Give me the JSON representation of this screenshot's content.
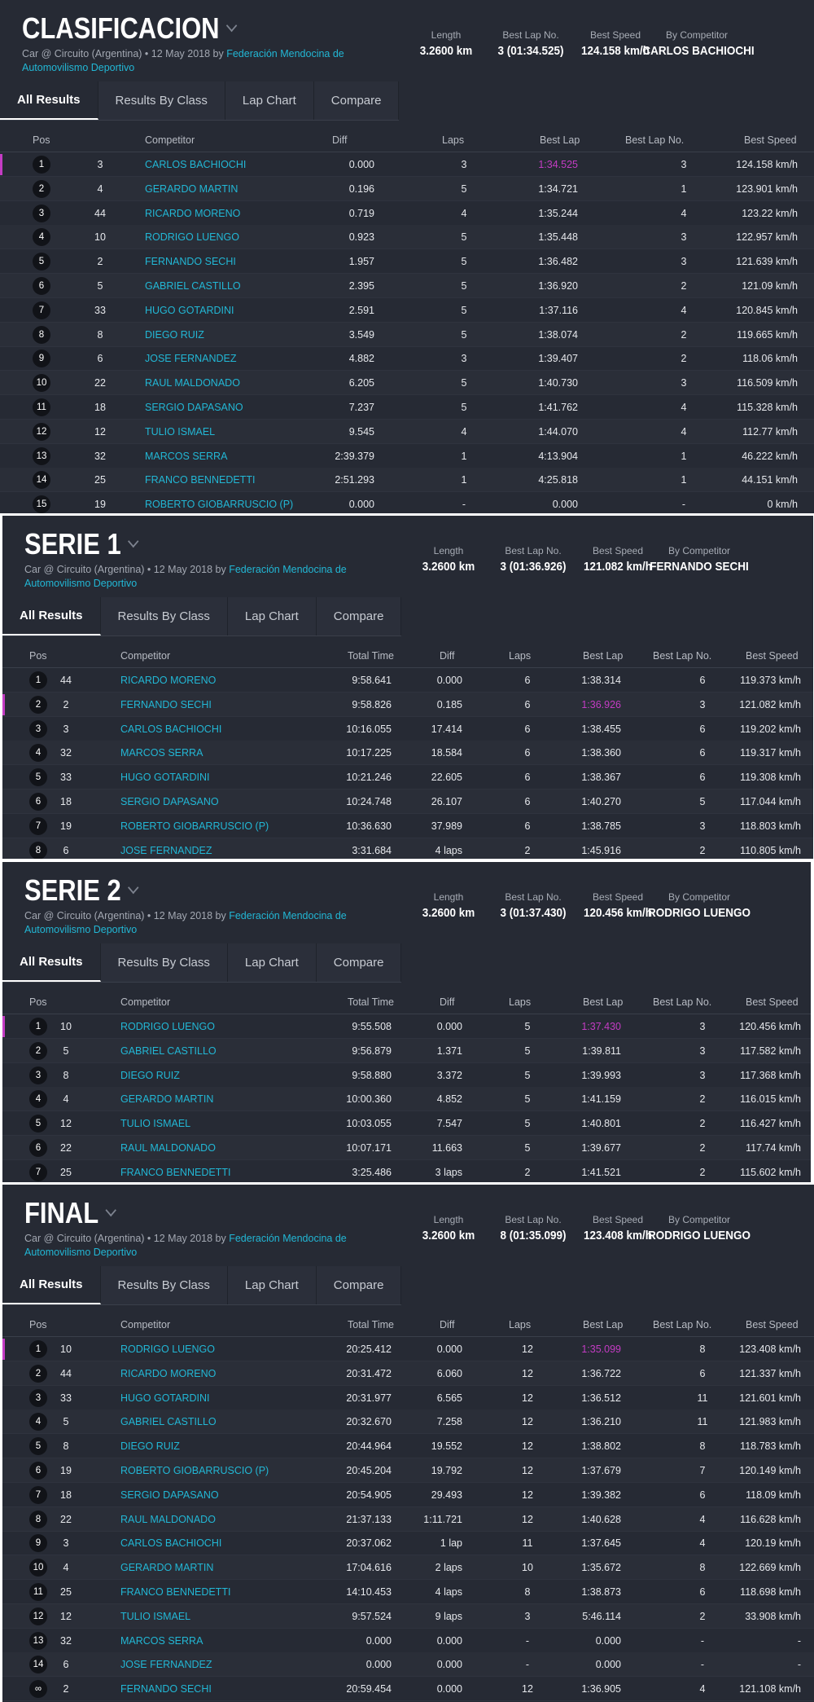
{
  "common": {
    "subtitle_prefix": "Car @ Circuito (Argentina) • 12 May 2018 by",
    "org": "Federación Mendocina de Automovilismo Deportivo",
    "tabs": [
      "All Results",
      "Results By Class",
      "Lap Chart",
      "Compare"
    ],
    "stat_labels": [
      "Length",
      "Best Lap No.",
      "Best Speed",
      "By Competitor"
    ],
    "colors": {
      "panel": "#262a34",
      "accent_link": "#22b7d5",
      "best_lap": "#c43cc4",
      "white_bg": "#ffffff"
    }
  },
  "sessions": [
    {
      "title": "CLASIFICACION",
      "stats": {
        "length": "3.2600 km",
        "best_lap_no": "3 (01:34.525)",
        "best_speed": "124.158 km/h",
        "by_competitor": "CARLOS BACHIOCHI"
      },
      "headers": [
        "Pos",
        "Competitor",
        "Diff",
        "Laps",
        "Best Lap",
        "Best Lap No.",
        "Best Speed"
      ],
      "rows": [
        {
          "pos": "1",
          "num": "3",
          "name": "CARLOS BACHIOCHI",
          "diff": "0.000",
          "laps": "3",
          "best_lap": "1:34.525",
          "best_lap_no": "3",
          "best_speed": "124.158 km/h",
          "best": true
        },
        {
          "pos": "2",
          "num": "4",
          "name": "GERARDO MARTIN",
          "diff": "0.196",
          "laps": "5",
          "best_lap": "1:34.721",
          "best_lap_no": "1",
          "best_speed": "123.901 km/h"
        },
        {
          "pos": "3",
          "num": "44",
          "name": "RICARDO MORENO",
          "diff": "0.719",
          "laps": "4",
          "best_lap": "1:35.244",
          "best_lap_no": "4",
          "best_speed": "123.22 km/h"
        },
        {
          "pos": "4",
          "num": "10",
          "name": "RODRIGO LUENGO",
          "diff": "0.923",
          "laps": "5",
          "best_lap": "1:35.448",
          "best_lap_no": "3",
          "best_speed": "122.957 km/h"
        },
        {
          "pos": "5",
          "num": "2",
          "name": "FERNANDO SECHI",
          "diff": "1.957",
          "laps": "5",
          "best_lap": "1:36.482",
          "best_lap_no": "3",
          "best_speed": "121.639 km/h"
        },
        {
          "pos": "6",
          "num": "5",
          "name": "GABRIEL CASTILLO",
          "diff": "2.395",
          "laps": "5",
          "best_lap": "1:36.920",
          "best_lap_no": "2",
          "best_speed": "121.09 km/h"
        },
        {
          "pos": "7",
          "num": "33",
          "name": "HUGO GOTARDINI",
          "diff": "2.591",
          "laps": "5",
          "best_lap": "1:37.116",
          "best_lap_no": "4",
          "best_speed": "120.845 km/h"
        },
        {
          "pos": "8",
          "num": "8",
          "name": "DIEGO RUIZ",
          "diff": "3.549",
          "laps": "5",
          "best_lap": "1:38.074",
          "best_lap_no": "2",
          "best_speed": "119.665 km/h"
        },
        {
          "pos": "9",
          "num": "6",
          "name": "JOSE FERNANDEZ",
          "diff": "4.882",
          "laps": "3",
          "best_lap": "1:39.407",
          "best_lap_no": "2",
          "best_speed": "118.06 km/h"
        },
        {
          "pos": "10",
          "num": "22",
          "name": "RAUL MALDONADO",
          "diff": "6.205",
          "laps": "5",
          "best_lap": "1:40.730",
          "best_lap_no": "3",
          "best_speed": "116.509 km/h"
        },
        {
          "pos": "11",
          "num": "18",
          "name": "SERGIO DAPASANO",
          "diff": "7.237",
          "laps": "5",
          "best_lap": "1:41.762",
          "best_lap_no": "4",
          "best_speed": "115.328 km/h"
        },
        {
          "pos": "12",
          "num": "12",
          "name": "TULIO ISMAEL",
          "diff": "9.545",
          "laps": "4",
          "best_lap": "1:44.070",
          "best_lap_no": "4",
          "best_speed": "112.77 km/h"
        },
        {
          "pos": "13",
          "num": "32",
          "name": "MARCOS SERRA",
          "diff": "2:39.379",
          "laps": "1",
          "best_lap": "4:13.904",
          "best_lap_no": "1",
          "best_speed": "46.222 km/h"
        },
        {
          "pos": "14",
          "num": "25",
          "name": "FRANCO BENNEDETTI",
          "diff": "2:51.293",
          "laps": "1",
          "best_lap": "4:25.818",
          "best_lap_no": "1",
          "best_speed": "44.151 km/h"
        },
        {
          "pos": "15",
          "num": "19",
          "name": "ROBERTO GIOBARRUSCIO (P)",
          "diff": "0.000",
          "laps": "-",
          "best_lap": "0.000",
          "best_lap_no": "-",
          "best_speed": "0 km/h"
        }
      ]
    },
    {
      "title": "SERIE 1",
      "stats": {
        "length": "3.2600 km",
        "best_lap_no": "3 (01:36.926)",
        "best_speed": "121.082 km/h",
        "by_competitor": "FERNANDO SECHI"
      },
      "headers": [
        "Pos",
        "Competitor",
        "Total Time",
        "Diff",
        "Laps",
        "Best Lap",
        "Best Lap No.",
        "Best Speed"
      ],
      "rows": [
        {
          "pos": "1",
          "num": "44",
          "name": "RICARDO MORENO",
          "total": "9:58.641",
          "diff": "0.000",
          "laps": "6",
          "best_lap": "1:38.314",
          "best_lap_no": "6",
          "best_speed": "119.373 km/h"
        },
        {
          "pos": "2",
          "num": "2",
          "name": "FERNANDO SECHI",
          "total": "9:58.826",
          "diff": "0.185",
          "laps": "6",
          "best_lap": "1:36.926",
          "best_lap_no": "3",
          "best_speed": "121.082 km/h",
          "best": true
        },
        {
          "pos": "3",
          "num": "3",
          "name": "CARLOS BACHIOCHI",
          "total": "10:16.055",
          "diff": "17.414",
          "laps": "6",
          "best_lap": "1:38.455",
          "best_lap_no": "6",
          "best_speed": "119.202 km/h"
        },
        {
          "pos": "4",
          "num": "32",
          "name": "MARCOS SERRA",
          "total": "10:17.225",
          "diff": "18.584",
          "laps": "6",
          "best_lap": "1:38.360",
          "best_lap_no": "6",
          "best_speed": "119.317 km/h"
        },
        {
          "pos": "5",
          "num": "33",
          "name": "HUGO GOTARDINI",
          "total": "10:21.246",
          "diff": "22.605",
          "laps": "6",
          "best_lap": "1:38.367",
          "best_lap_no": "6",
          "best_speed": "119.308 km/h"
        },
        {
          "pos": "6",
          "num": "18",
          "name": "SERGIO DAPASANO",
          "total": "10:24.748",
          "diff": "26.107",
          "laps": "6",
          "best_lap": "1:40.270",
          "best_lap_no": "5",
          "best_speed": "117.044 km/h"
        },
        {
          "pos": "7",
          "num": "19",
          "name": "ROBERTO GIOBARRUSCIO (P)",
          "total": "10:36.630",
          "diff": "37.989",
          "laps": "6",
          "best_lap": "1:38.785",
          "best_lap_no": "3",
          "best_speed": "118.803 km/h"
        },
        {
          "pos": "8",
          "num": "6",
          "name": "JOSE FERNANDEZ",
          "total": "3:31.684",
          "diff": "4 laps",
          "laps": "2",
          "best_lap": "1:45.916",
          "best_lap_no": "2",
          "best_speed": "110.805 km/h"
        }
      ]
    },
    {
      "title": "SERIE 2",
      "stats": {
        "length": "3.2600 km",
        "best_lap_no": "3 (01:37.430)",
        "best_speed": "120.456 km/h",
        "by_competitor": "RODRIGO LUENGO"
      },
      "headers": [
        "Pos",
        "Competitor",
        "Total Time",
        "Diff",
        "Laps",
        "Best Lap",
        "Best Lap No.",
        "Best Speed"
      ],
      "rows": [
        {
          "pos": "1",
          "num": "10",
          "name": "RODRIGO LUENGO",
          "total": "9:55.508",
          "diff": "0.000",
          "laps": "5",
          "best_lap": "1:37.430",
          "best_lap_no": "3",
          "best_speed": "120.456 km/h",
          "best": true
        },
        {
          "pos": "2",
          "num": "5",
          "name": "GABRIEL CASTILLO",
          "total": "9:56.879",
          "diff": "1.371",
          "laps": "5",
          "best_lap": "1:39.811",
          "best_lap_no": "3",
          "best_speed": "117.582 km/h"
        },
        {
          "pos": "3",
          "num": "8",
          "name": "DIEGO RUIZ",
          "total": "9:58.880",
          "diff": "3.372",
          "laps": "5",
          "best_lap": "1:39.993",
          "best_lap_no": "3",
          "best_speed": "117.368 km/h"
        },
        {
          "pos": "4",
          "num": "4",
          "name": "GERARDO MARTIN",
          "total": "10:00.360",
          "diff": "4.852",
          "laps": "5",
          "best_lap": "1:41.159",
          "best_lap_no": "2",
          "best_speed": "116.015 km/h"
        },
        {
          "pos": "5",
          "num": "12",
          "name": "TULIO ISMAEL",
          "total": "10:03.055",
          "diff": "7.547",
          "laps": "5",
          "best_lap": "1:40.801",
          "best_lap_no": "2",
          "best_speed": "116.427 km/h"
        },
        {
          "pos": "6",
          "num": "22",
          "name": "RAUL MALDONADO",
          "total": "10:07.171",
          "diff": "11.663",
          "laps": "5",
          "best_lap": "1:39.677",
          "best_lap_no": "2",
          "best_speed": "117.74 km/h"
        },
        {
          "pos": "7",
          "num": "25",
          "name": "FRANCO BENNEDETTI",
          "total": "3:25.486",
          "diff": "3 laps",
          "laps": "2",
          "best_lap": "1:41.521",
          "best_lap_no": "2",
          "best_speed": "115.602 km/h"
        }
      ]
    },
    {
      "title": "FINAL",
      "stats": {
        "length": "3.2600 km",
        "best_lap_no": "8 (01:35.099)",
        "best_speed": "123.408 km/h",
        "by_competitor": "RODRIGO LUENGO"
      },
      "headers": [
        "Pos",
        "Competitor",
        "Total Time",
        "Diff",
        "Laps",
        "Best Lap",
        "Best Lap No.",
        "Best Speed"
      ],
      "rows": [
        {
          "pos": "1",
          "num": "10",
          "name": "RODRIGO LUENGO",
          "total": "20:25.412",
          "diff": "0.000",
          "laps": "12",
          "best_lap": "1:35.099",
          "best_lap_no": "8",
          "best_speed": "123.408 km/h",
          "best": true
        },
        {
          "pos": "2",
          "num": "44",
          "name": "RICARDO MORENO",
          "total": "20:31.472",
          "diff": "6.060",
          "laps": "12",
          "best_lap": "1:36.722",
          "best_lap_no": "6",
          "best_speed": "121.337 km/h"
        },
        {
          "pos": "3",
          "num": "33",
          "name": "HUGO GOTARDINI",
          "total": "20:31.977",
          "diff": "6.565",
          "laps": "12",
          "best_lap": "1:36.512",
          "best_lap_no": "11",
          "best_speed": "121.601 km/h"
        },
        {
          "pos": "4",
          "num": "5",
          "name": "GABRIEL CASTILLO",
          "total": "20:32.670",
          "diff": "7.258",
          "laps": "12",
          "best_lap": "1:36.210",
          "best_lap_no": "11",
          "best_speed": "121.983 km/h"
        },
        {
          "pos": "5",
          "num": "8",
          "name": "DIEGO RUIZ",
          "total": "20:44.964",
          "diff": "19.552",
          "laps": "12",
          "best_lap": "1:38.802",
          "best_lap_no": "8",
          "best_speed": "118.783 km/h"
        },
        {
          "pos": "6",
          "num": "19",
          "name": "ROBERTO GIOBARRUSCIO (P)",
          "total": "20:45.204",
          "diff": "19.792",
          "laps": "12",
          "best_lap": "1:37.679",
          "best_lap_no": "7",
          "best_speed": "120.149 km/h"
        },
        {
          "pos": "7",
          "num": "18",
          "name": "SERGIO DAPASANO",
          "total": "20:54.905",
          "diff": "29.493",
          "laps": "12",
          "best_lap": "1:39.382",
          "best_lap_no": "6",
          "best_speed": "118.09 km/h"
        },
        {
          "pos": "8",
          "num": "22",
          "name": "RAUL MALDONADO",
          "total": "21:37.133",
          "diff": "1:11.721",
          "laps": "12",
          "best_lap": "1:40.628",
          "best_lap_no": "4",
          "best_speed": "116.628 km/h"
        },
        {
          "pos": "9",
          "num": "3",
          "name": "CARLOS BACHIOCHI",
          "total": "20:37.062",
          "diff": "1 lap",
          "laps": "11",
          "best_lap": "1:37.645",
          "best_lap_no": "4",
          "best_speed": "120.19 km/h"
        },
        {
          "pos": "10",
          "num": "4",
          "name": "GERARDO MARTIN",
          "total": "17:04.616",
          "diff": "2 laps",
          "laps": "10",
          "best_lap": "1:35.672",
          "best_lap_no": "8",
          "best_speed": "122.669 km/h"
        },
        {
          "pos": "11",
          "num": "25",
          "name": "FRANCO BENNEDETTI",
          "total": "14:10.453",
          "diff": "4 laps",
          "laps": "8",
          "best_lap": "1:38.873",
          "best_lap_no": "6",
          "best_speed": "118.698 km/h"
        },
        {
          "pos": "12",
          "num": "12",
          "name": "TULIO ISMAEL",
          "total": "9:57.524",
          "diff": "9 laps",
          "laps": "3",
          "best_lap": "5:46.114",
          "best_lap_no": "2",
          "best_speed": "33.908 km/h"
        },
        {
          "pos": "13",
          "num": "32",
          "name": "MARCOS SERRA",
          "total": "0.000",
          "diff": "0.000",
          "laps": "-",
          "best_lap": "0.000",
          "best_lap_no": "-",
          "best_speed": "-"
        },
        {
          "pos": "14",
          "num": "6",
          "name": "JOSE FERNANDEZ",
          "total": "0.000",
          "diff": "0.000",
          "laps": "-",
          "best_lap": "0.000",
          "best_lap_no": "-",
          "best_speed": "-"
        },
        {
          "pos": "∞",
          "num": "2",
          "name": "FERNANDO SECHI",
          "total": "20:59.454",
          "diff": "0.000",
          "laps": "12",
          "best_lap": "1:36.905",
          "best_lap_no": "4",
          "best_speed": "121.108 km/h"
        }
      ]
    }
  ]
}
